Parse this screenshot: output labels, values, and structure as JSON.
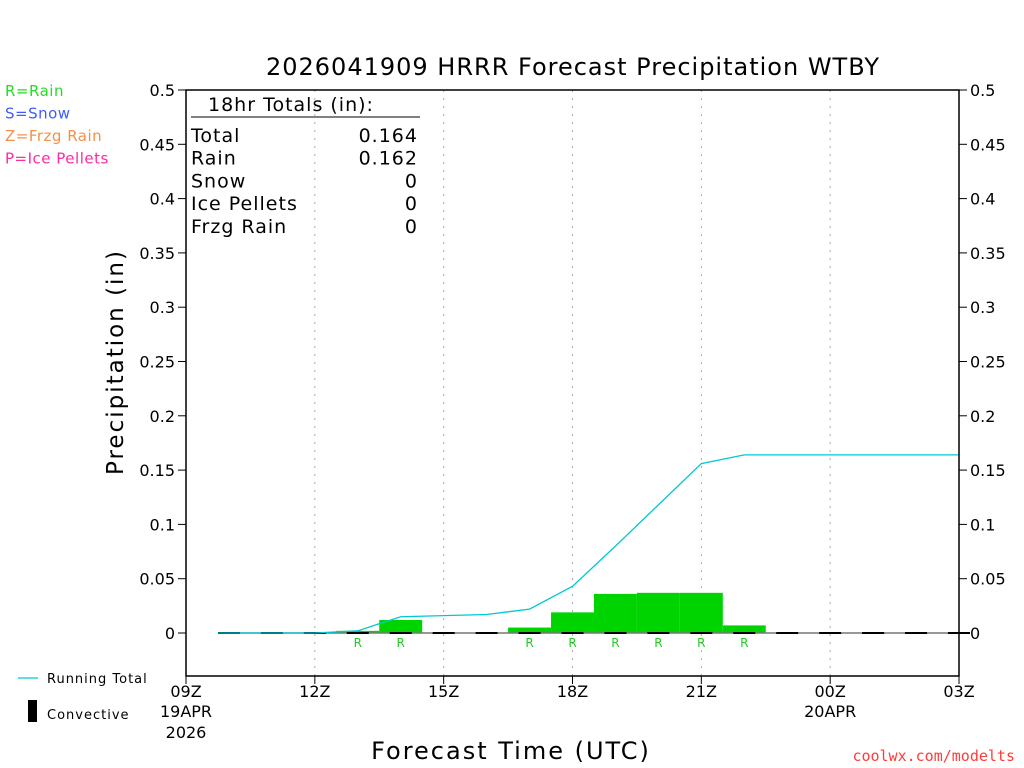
{
  "chart_data": {
    "type": "bar",
    "title": "2026041909 HRRR Forecast Precipitation WTBY",
    "xlabel": "Forecast Time (UTC)",
    "ylabel": "Precipitation (in)",
    "ylim": [
      -0.04,
      0.5
    ],
    "xlim_hours": [
      0,
      18
    ],
    "yticks": [
      "0.5",
      "0.45",
      "0.4",
      "0.35",
      "0.3",
      "0.25",
      "0.2",
      "0.15",
      "0.1",
      "0.05",
      "0"
    ],
    "ytick_values": [
      0.5,
      0.45,
      0.4,
      0.35,
      0.3,
      0.25,
      0.2,
      0.15,
      0.1,
      0.05,
      0
    ],
    "xticks": [
      {
        "hour": 0,
        "label": "09Z",
        "sub1": "19APR",
        "sub2": "2026"
      },
      {
        "hour": 3,
        "label": "12Z"
      },
      {
        "hour": 6,
        "label": "15Z"
      },
      {
        "hour": 9,
        "label": "18Z"
      },
      {
        "hour": 12,
        "label": "21Z"
      },
      {
        "hour": 15,
        "label": "00Z",
        "sub1": "20APR"
      },
      {
        "hour": 18,
        "label": "03Z"
      }
    ],
    "grid": "vertical dotted",
    "bars": {
      "name": "Hourly Rain",
      "color": "#00d400",
      "hours": [
        4,
        5,
        8,
        9,
        10,
        11,
        12,
        13
      ],
      "values": [
        0.002,
        0.012,
        0.005,
        0.019,
        0.036,
        0.037,
        0.037,
        0.007
      ],
      "type_labels": [
        "R",
        "R",
        "R",
        "R",
        "R",
        "R",
        "R",
        "R"
      ]
    },
    "running_total": {
      "name": "Running Total",
      "color": "#00c8d2",
      "hours": [
        1,
        2,
        3,
        4,
        5,
        6,
        7,
        8,
        9,
        10,
        11,
        12,
        13,
        14,
        15,
        16,
        17,
        18
      ],
      "values": [
        0,
        0,
        0,
        0.002,
        0.015,
        0.016,
        0.017,
        0.022,
        0.043,
        0.08,
        0.118,
        0.156,
        0.164,
        0.164,
        0.164,
        0.164,
        0.164,
        0.164
      ]
    },
    "convective": {
      "name": "Convective",
      "hours_from": 1,
      "hours_to": 18,
      "value": 0
    },
    "totals_box": {
      "heading": "18hr Totals (in):",
      "rows": [
        {
          "label": "Total",
          "value": "0.164"
        },
        {
          "label": "Rain",
          "value": "0.162"
        },
        {
          "label": "Snow",
          "value": "0"
        },
        {
          "label": "Ice Pellets",
          "value": "0"
        },
        {
          "label": "Frzg Rain",
          "value": "0"
        }
      ]
    },
    "type_legend": [
      {
        "text": "R=Rain",
        "color": "#22dd22"
      },
      {
        "text": "S=Snow",
        "color": "#3d5cff"
      },
      {
        "text": "Z=Frzg Rain",
        "color": "#f5904a"
      },
      {
        "text": "P=Ice Pellets",
        "color": "#ff2aa0"
      }
    ],
    "legend": {
      "running_total": "Running Total",
      "convective": "Convective"
    },
    "watermark": "coolwx.com/modelts"
  }
}
